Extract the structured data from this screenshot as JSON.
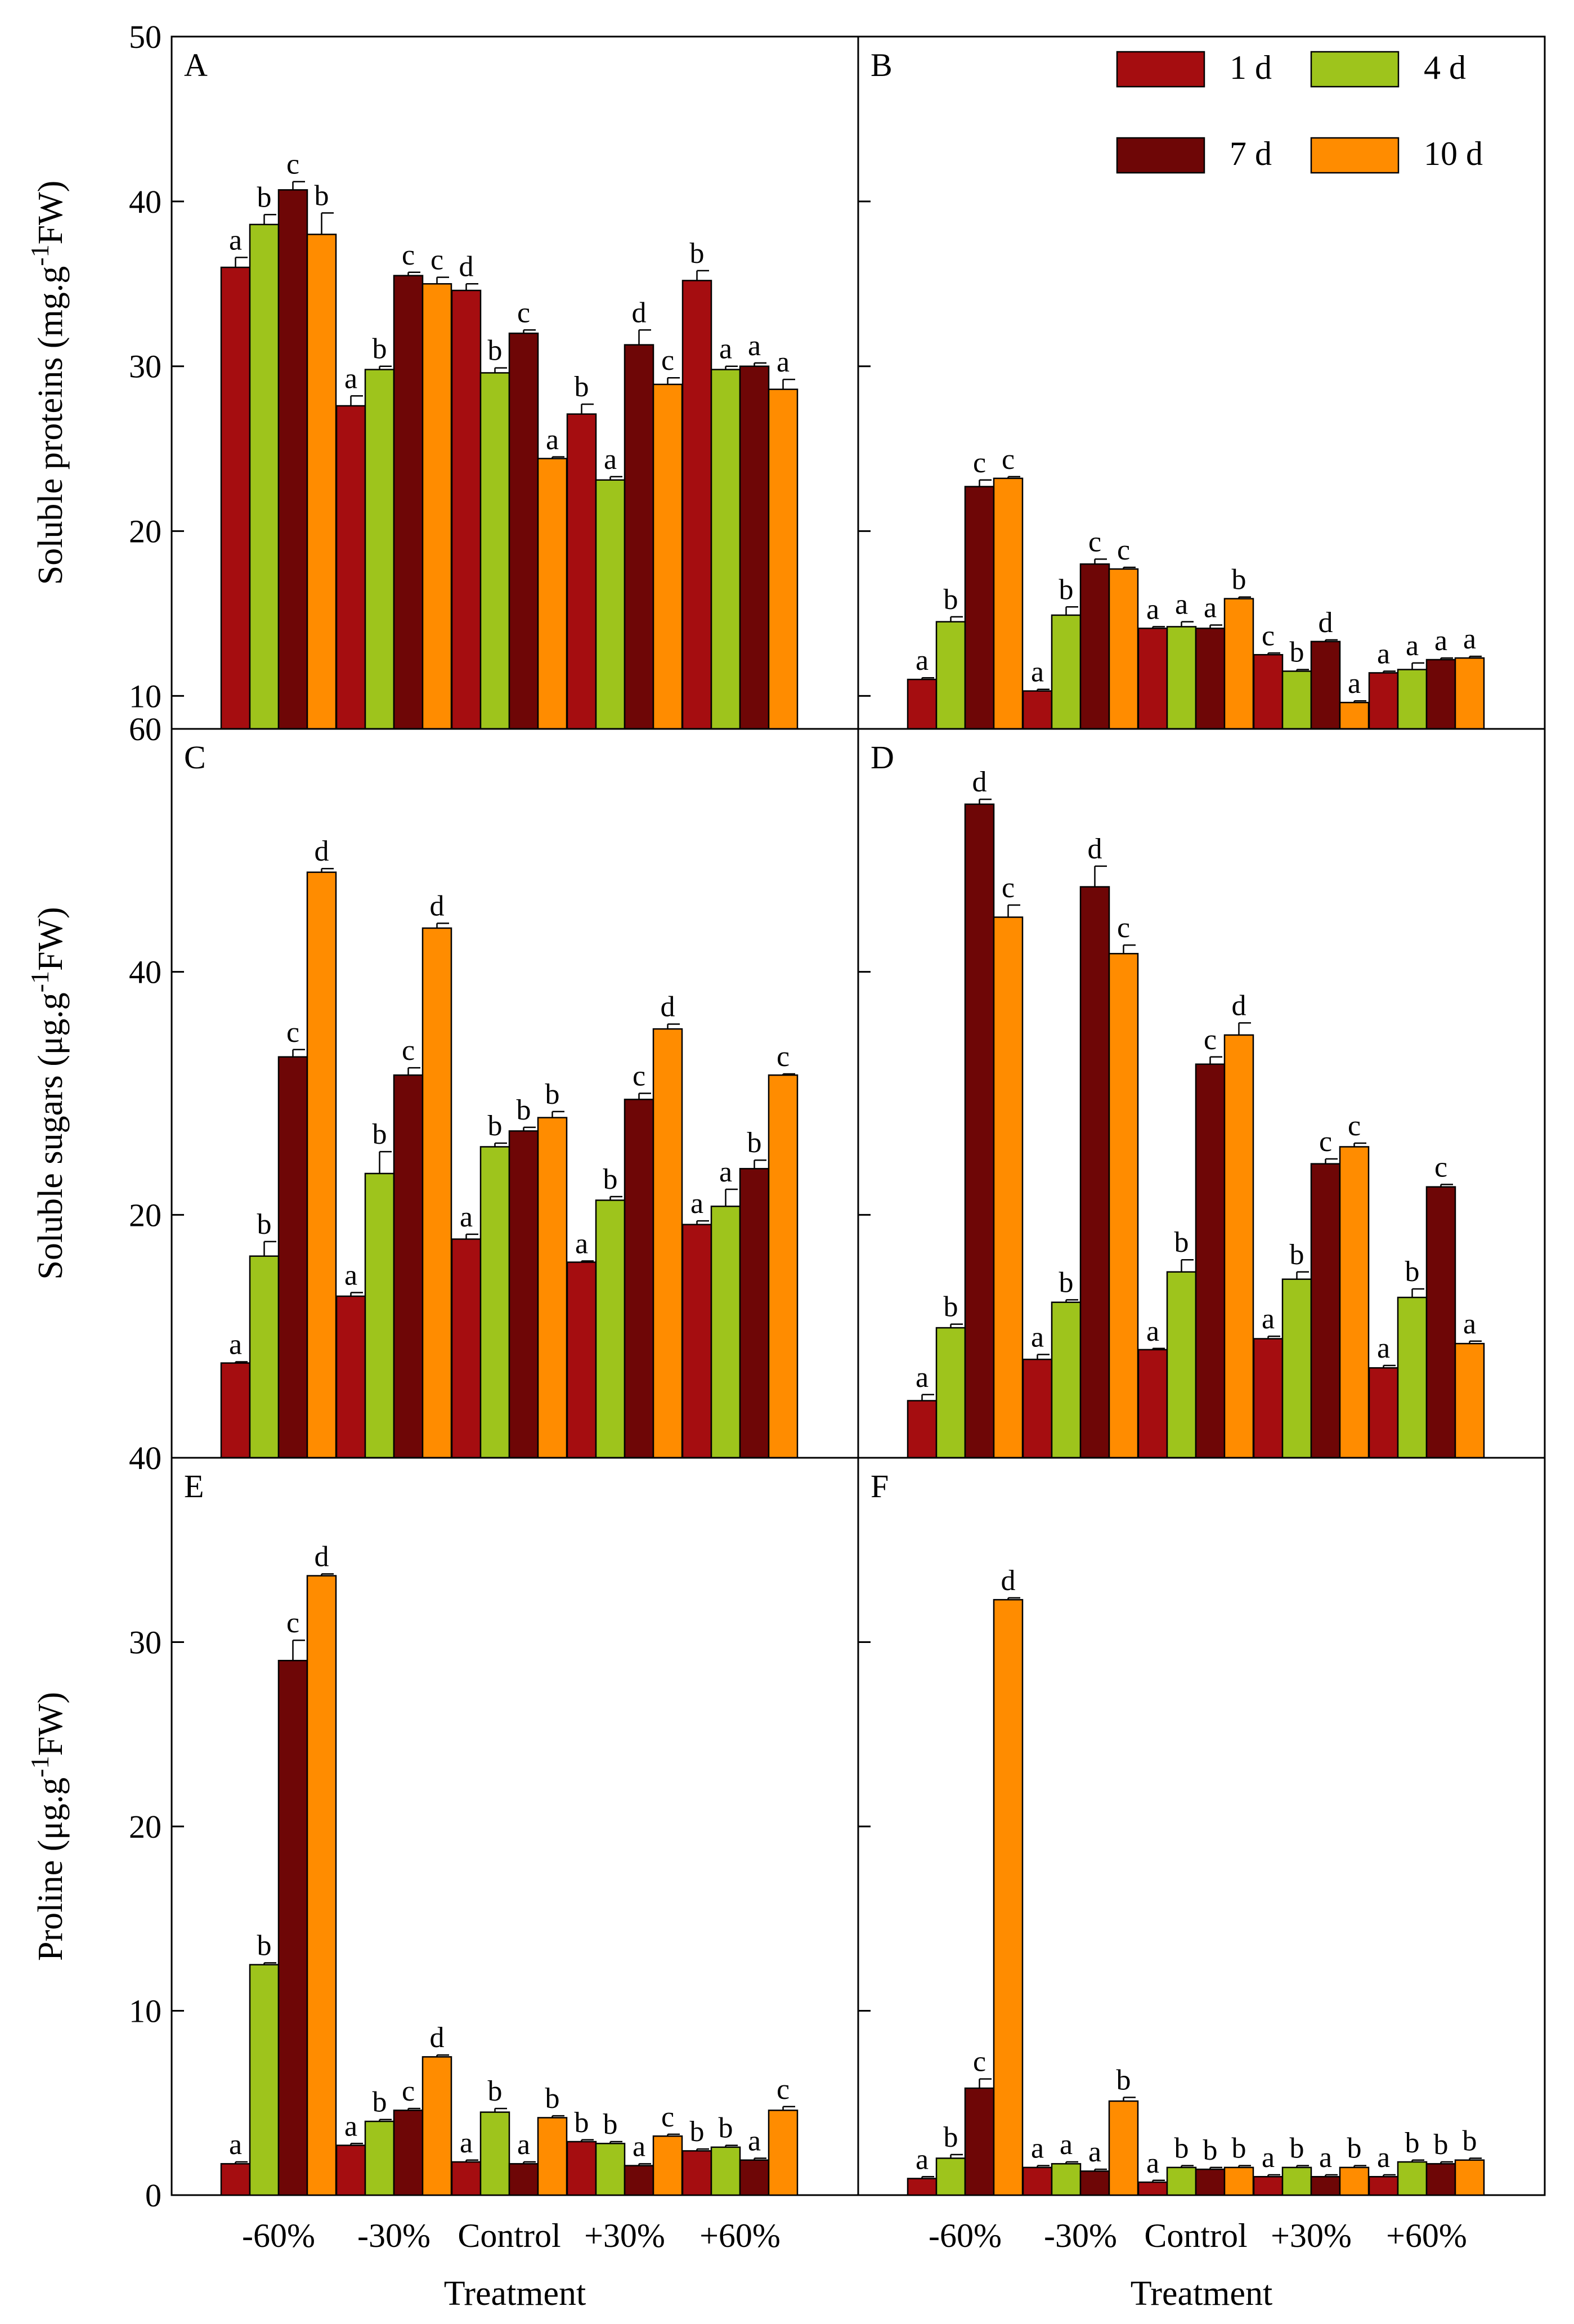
{
  "legend": [
    {
      "label": "1 d",
      "color": "#a50d10"
    },
    {
      "label": "4 d",
      "color": "#9ec41c"
    },
    {
      "label": "7 d",
      "color": "#6e0606"
    },
    {
      "label": "10 d",
      "color": "#ff8c00"
    }
  ],
  "xlabel": "Treatment",
  "chart_data": [
    {
      "type": "bar",
      "panel": "A",
      "ylabel": "Soluble proteins (mg.g-1FW)",
      "ylabel_main": "Soluble proteins (mg.g",
      "ylabel_sup": "-1",
      "ylabel_end": "FW)",
      "ylim": [
        8,
        50
      ],
      "yticks": [
        10,
        20,
        30,
        40,
        50
      ],
      "categories": [
        "-60%",
        "-30%",
        "Control",
        "+30%",
        "+60%"
      ],
      "series": [
        {
          "name": "1 d",
          "values": [
            36.0,
            27.6,
            34.6,
            27.1,
            35.2
          ],
          "errors": [
            0.6,
            0.6,
            0.4,
            0.6,
            0.6
          ],
          "letters": [
            "a",
            "a",
            "d",
            "b",
            "b"
          ]
        },
        {
          "name": "4 d",
          "values": [
            38.6,
            29.8,
            29.6,
            23.1,
            29.8
          ],
          "errors": [
            0.6,
            0.2,
            0.3,
            0.2,
            0.2
          ],
          "letters": [
            "b",
            "b",
            "b",
            "a",
            "a"
          ]
        },
        {
          "name": "7 d",
          "values": [
            40.7,
            35.5,
            32.0,
            31.3,
            30.0
          ],
          "errors": [
            0.5,
            0.2,
            0.2,
            0.9,
            0.2
          ],
          "letters": [
            "c",
            "c",
            "c",
            "d",
            "a"
          ]
        },
        {
          "name": "10 d",
          "values": [
            38.0,
            35.0,
            24.4,
            28.9,
            28.6
          ],
          "errors": [
            1.3,
            0.4,
            0.1,
            0.4,
            0.6
          ],
          "letters": [
            "b",
            "c",
            "a",
            "c",
            "a"
          ]
        }
      ]
    },
    {
      "type": "bar",
      "panel": "B",
      "ylabel": "",
      "ylim": [
        8,
        50
      ],
      "yticks": [
        10,
        20,
        30,
        40,
        50
      ],
      "categories": [
        "-60%",
        "-30%",
        "Control",
        "+30%",
        "+60%"
      ],
      "series": [
        {
          "name": "1 d",
          "values": [
            11.0,
            10.3,
            14.1,
            12.5,
            11.4
          ],
          "errors": [
            0.1,
            0.1,
            0.1,
            0.1,
            0.1
          ],
          "letters": [
            "a",
            "a",
            "a",
            "c",
            "a"
          ]
        },
        {
          "name": "4 d",
          "values": [
            14.5,
            14.9,
            14.2,
            11.5,
            11.6
          ],
          "errors": [
            0.3,
            0.5,
            0.3,
            0.1,
            0.4
          ],
          "letters": [
            "b",
            "b",
            "a",
            "b",
            "a"
          ]
        },
        {
          "name": "7 d",
          "values": [
            22.7,
            18.0,
            14.1,
            13.3,
            12.2
          ],
          "errors": [
            0.4,
            0.3,
            0.2,
            0.1,
            0.1
          ],
          "letters": [
            "c",
            "c",
            "a",
            "d",
            "a"
          ]
        },
        {
          "name": "10 d",
          "values": [
            23.2,
            17.7,
            15.9,
            9.6,
            12.3
          ],
          "errors": [
            0.1,
            0.1,
            0.1,
            0.1,
            0.1
          ],
          "letters": [
            "c",
            "c",
            "b",
            "a",
            "a"
          ]
        }
      ]
    },
    {
      "type": "bar",
      "panel": "C",
      "ylabel": "Soluble sugars (μg.g-1FW)",
      "ylabel_main": "Soluble sugars (μg.g",
      "ylabel_sup": "-1",
      "ylabel_end": "FW)",
      "ylim": [
        0,
        60
      ],
      "yticks": [
        0,
        20,
        40,
        60
      ],
      "categories": [
        "-60%",
        "-30%",
        "Control",
        "+30%",
        "+60%"
      ],
      "series": [
        {
          "name": "1 d",
          "values": [
            7.8,
            13.3,
            18.0,
            16.1,
            19.2
          ],
          "errors": [
            0.1,
            0.3,
            0.4,
            0.1,
            0.3
          ],
          "letters": [
            "a",
            "a",
            "a",
            "a",
            "a"
          ]
        },
        {
          "name": "4 d",
          "values": [
            16.6,
            23.4,
            25.6,
            21.2,
            20.7
          ],
          "errors": [
            1.2,
            1.8,
            0.3,
            0.3,
            1.4
          ],
          "letters": [
            "b",
            "b",
            "b",
            "b",
            "a"
          ]
        },
        {
          "name": "7 d",
          "values": [
            33.0,
            31.5,
            26.9,
            29.5,
            23.8
          ],
          "errors": [
            0.6,
            0.6,
            0.3,
            0.5,
            0.7
          ],
          "letters": [
            "c",
            "c",
            "b",
            "c",
            "b"
          ]
        },
        {
          "name": "10 d",
          "values": [
            48.2,
            43.6,
            28.0,
            35.3,
            31.5
          ],
          "errors": [
            0.3,
            0.4,
            0.5,
            0.4,
            0.1
          ],
          "letters": [
            "d",
            "d",
            "b",
            "d",
            "c"
          ]
        }
      ]
    },
    {
      "type": "bar",
      "panel": "D",
      "ylabel": "",
      "ylim": [
        0,
        60
      ],
      "yticks": [
        0,
        20,
        40,
        60
      ],
      "categories": [
        "-60%",
        "-30%",
        "Control",
        "+30%",
        "+60%"
      ],
      "series": [
        {
          "name": "1 d",
          "values": [
            4.7,
            8.1,
            8.9,
            9.8,
            7.4
          ],
          "errors": [
            0.5,
            0.4,
            0.1,
            0.2,
            0.2
          ],
          "letters": [
            "a",
            "a",
            "a",
            "a",
            "a"
          ]
        },
        {
          "name": "4 d",
          "values": [
            10.7,
            12.8,
            15.3,
            14.7,
            13.2
          ],
          "errors": [
            0.3,
            0.2,
            1.0,
            0.6,
            0.7
          ],
          "letters": [
            "b",
            "b",
            "b",
            "b",
            "b"
          ]
        },
        {
          "name": "7 d",
          "values": [
            53.8,
            47.0,
            32.4,
            24.2,
            22.3
          ],
          "errors": [
            0.4,
            1.7,
            0.6,
            0.4,
            0.2
          ],
          "letters": [
            "d",
            "d",
            "c",
            "c",
            "c"
          ]
        },
        {
          "name": "10 d",
          "values": [
            44.5,
            41.5,
            34.8,
            25.6,
            9.4
          ],
          "errors": [
            1.0,
            0.7,
            1.0,
            0.3,
            0.2
          ],
          "letters": [
            "c",
            "c",
            "d",
            "c",
            "a"
          ]
        }
      ]
    },
    {
      "type": "bar",
      "panel": "E",
      "ylabel": "Proline (μg.g-1FW)",
      "ylabel_main": "Proline (μg.g",
      "ylabel_sup": "-1",
      "ylabel_end": "FW)",
      "ylim": [
        0,
        40
      ],
      "yticks": [
        0,
        10,
        20,
        30,
        40
      ],
      "categories": [
        "-60%",
        "-30%",
        "Control",
        "+30%",
        "+60%"
      ],
      "series": [
        {
          "name": "1 d",
          "values": [
            1.7,
            2.7,
            1.8,
            2.9,
            2.4
          ],
          "errors": [
            0.1,
            0.1,
            0.1,
            0.1,
            0.1
          ],
          "letters": [
            "a",
            "a",
            "a",
            "b",
            "b"
          ]
        },
        {
          "name": "4 d",
          "values": [
            12.5,
            4.0,
            4.5,
            2.8,
            2.6
          ],
          "errors": [
            0.1,
            0.1,
            0.2,
            0.1,
            0.1
          ],
          "letters": [
            "b",
            "b",
            "b",
            "b",
            "b"
          ]
        },
        {
          "name": "7 d",
          "values": [
            29.0,
            4.6,
            1.7,
            1.6,
            1.9
          ],
          "errors": [
            1.1,
            0.1,
            0.1,
            0.1,
            0.1
          ],
          "letters": [
            "c",
            "c",
            "a",
            "a",
            "a"
          ]
        },
        {
          "name": "10 d",
          "values": [
            33.6,
            7.5,
            4.2,
            3.2,
            4.6
          ],
          "errors": [
            0.1,
            0.1,
            0.1,
            0.1,
            0.2
          ],
          "letters": [
            "d",
            "d",
            "b",
            "c",
            "c"
          ]
        }
      ]
    },
    {
      "type": "bar",
      "panel": "F",
      "ylabel": "",
      "ylim": [
        0,
        40
      ],
      "yticks": [
        0,
        10,
        20,
        30,
        40
      ],
      "categories": [
        "-60%",
        "-30%",
        "Control",
        "+30%",
        "+60%"
      ],
      "series": [
        {
          "name": "1 d",
          "values": [
            0.9,
            1.5,
            0.7,
            1.0,
            1.0
          ],
          "errors": [
            0.1,
            0.1,
            0.1,
            0.1,
            0.1
          ],
          "letters": [
            "a",
            "a",
            "a",
            "a",
            "a"
          ]
        },
        {
          "name": "4 d",
          "values": [
            2.0,
            1.7,
            1.5,
            1.5,
            1.8
          ],
          "errors": [
            0.2,
            0.1,
            0.1,
            0.1,
            0.1
          ],
          "letters": [
            "b",
            "a",
            "b",
            "b",
            "b"
          ]
        },
        {
          "name": "7 d",
          "values": [
            5.8,
            1.3,
            1.4,
            1.0,
            1.7
          ],
          "errors": [
            0.5,
            0.1,
            0.1,
            0.1,
            0.1
          ],
          "letters": [
            "c",
            "a",
            "b",
            "a",
            "b"
          ]
        },
        {
          "name": "10 d",
          "values": [
            32.3,
            5.1,
            1.5,
            1.5,
            1.9
          ],
          "errors": [
            0.1,
            0.2,
            0.1,
            0.1,
            0.1
          ],
          "letters": [
            "d",
            "b",
            "b",
            "b",
            "b"
          ]
        }
      ]
    }
  ]
}
